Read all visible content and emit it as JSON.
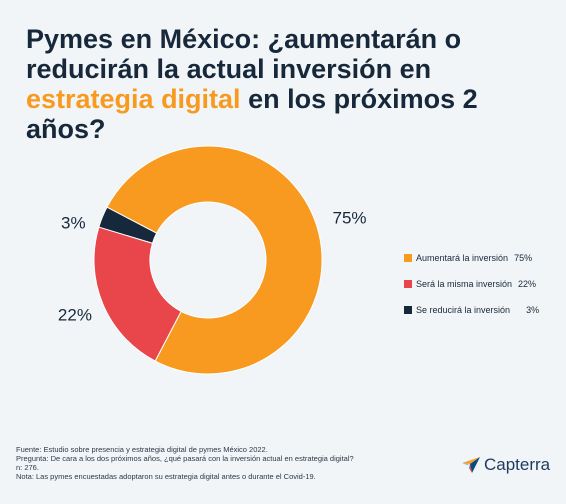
{
  "title": {
    "line1": "Pymes en México: ¿aumentarán o",
    "line2": "reducirán la actual inversión en",
    "highlight": "estrategia digital",
    "line3_rest": " en los próximos 2 años?",
    "highlight_color": "#f79a1f"
  },
  "chart_data": {
    "type": "pie",
    "donut": true,
    "title": "Pymes en México: ¿aumentarán o reducirán la actual inversión en estrategia digital en los próximos 2 años?",
    "slices": [
      {
        "label": "Aumentará la inversión",
        "value": 75,
        "display": "75%",
        "color": "#f79a1f"
      },
      {
        "label": "Será la misma inversión",
        "value": 22,
        "display": "22%",
        "color": "#e8464a"
      },
      {
        "label": "Se reducirá la inversión",
        "value": 3,
        "display": "3%",
        "color": "#16283b"
      }
    ],
    "legend_position": "right"
  },
  "legend": [
    {
      "label": "Aumentará la inversión",
      "value": "75%"
    },
    {
      "label": "Será la misma inversión",
      "value": "22%"
    },
    {
      "label": "Se reducirá la inversión",
      "value": "3%"
    }
  ],
  "footer": {
    "source": "Fuente: Estudio sobre presencia y estrategia digital de pymes México 2022.",
    "question": "Pregunta: De cara a los dos próximos años, ¿qué pasará con la inversión actual en estrategia digital?",
    "n": "n: 276.",
    "note": "Nota: Las pymes encuestadas adoptaron su estrategia digital antes o durante el Covid-19."
  },
  "brand": {
    "name": "Capterra",
    "icon": "capterra-arrow-icon"
  }
}
